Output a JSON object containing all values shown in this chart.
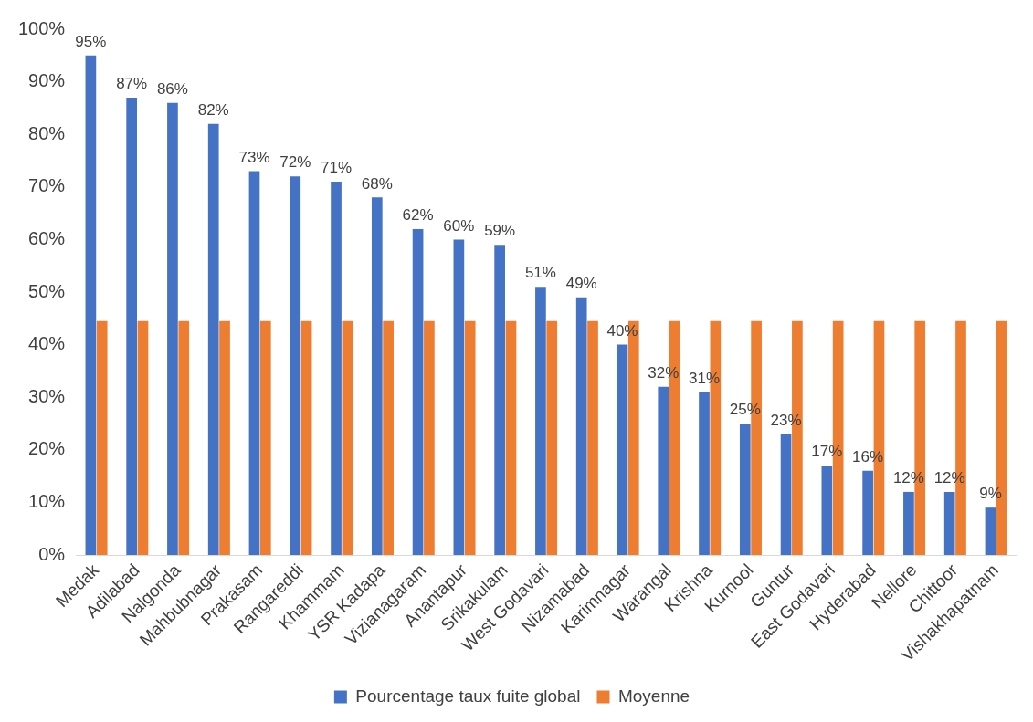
{
  "chart_data": {
    "type": "bar",
    "categories": [
      "Medak",
      "Adilabad",
      "Nalgonda",
      "Mahbubnagar",
      "Prakasam",
      "Rangareddi",
      "Khammam",
      "YSR Kadapa",
      "Vizianagaram",
      "Anantapur",
      "Srikakulam",
      "West Godavari",
      "Nizamabad",
      "Karimnagar",
      "Warangal",
      "Krishna",
      "Kurnool",
      "Guntur",
      "East Godavari",
      "Hyderabad",
      "Nellore",
      "Chittoor",
      "Vishakhapatnam"
    ],
    "series": [
      {
        "name": "Pourcentage taux fuite global",
        "color": "#4472c4",
        "values": [
          95,
          87,
          86,
          82,
          73,
          72,
          71,
          68,
          62,
          60,
          59,
          51,
          49,
          40,
          32,
          31,
          25,
          23,
          17,
          16,
          12,
          12,
          9
        ],
        "value_labels": [
          "95%",
          "87%",
          "86%",
          "82%",
          "73%",
          "72%",
          "71%",
          "68%",
          "62%",
          "60%",
          "59%",
          "51%",
          "49%",
          "40%",
          "32%",
          "31%",
          "25%",
          "23%",
          "17%",
          "16%",
          "12%",
          "12%",
          "9%"
        ]
      },
      {
        "name": "Moyenne",
        "color": "#ed7d31",
        "values": [
          44.5,
          44.5,
          44.5,
          44.5,
          44.5,
          44.5,
          44.5,
          44.5,
          44.5,
          44.5,
          44.5,
          44.5,
          44.5,
          44.5,
          44.5,
          44.5,
          44.5,
          44.5,
          44.5,
          44.5,
          44.5,
          44.5,
          44.5
        ]
      }
    ],
    "ylim": [
      0,
      100
    ],
    "yticks": [
      {
        "value": 0,
        "label": "0%"
      },
      {
        "value": 10,
        "label": "10%"
      },
      {
        "value": 20,
        "label": "20%"
      },
      {
        "value": 30,
        "label": "30%"
      },
      {
        "value": 40,
        "label": "40%"
      },
      {
        "value": 50,
        "label": "50%"
      },
      {
        "value": 60,
        "label": "60%"
      },
      {
        "value": 70,
        "label": "70%"
      },
      {
        "value": 80,
        "label": "80%"
      },
      {
        "value": 90,
        "label": "90%"
      },
      {
        "value": 100,
        "label": "100%"
      }
    ],
    "grid": false,
    "legend": "bottom"
  }
}
